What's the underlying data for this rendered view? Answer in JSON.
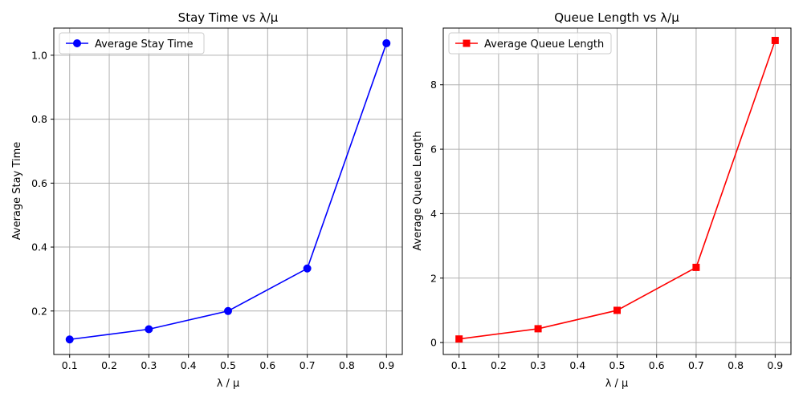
{
  "chart_data": [
    {
      "type": "line",
      "title": "Stay Time vs λ/μ",
      "xlabel": "λ / μ",
      "ylabel": "Average Stay Time",
      "x": [
        0.1,
        0.3,
        0.5,
        0.7,
        0.9
      ],
      "xlim": [
        0.06,
        0.94
      ],
      "ylim": [
        0.064,
        1.085
      ],
      "xticks": [
        0.1,
        0.2,
        0.3,
        0.4,
        0.5,
        0.6,
        0.7,
        0.8,
        0.9
      ],
      "xtick_labels": [
        "0.1",
        "0.2",
        "0.3",
        "0.4",
        "0.5",
        "0.6",
        "0.7",
        "0.8",
        "0.9"
      ],
      "yticks": [
        0.2,
        0.4,
        0.6,
        0.8,
        1.0
      ],
      "ytick_labels": [
        "0.2",
        "0.4",
        "0.6",
        "0.8",
        "1.0"
      ],
      "grid": true,
      "legend": "top-left",
      "series": [
        {
          "name": "Average Stay Time",
          "values": [
            0.111,
            0.143,
            0.2,
            0.333,
            1.0375
          ],
          "color": "#0000ff",
          "marker": "circle"
        }
      ]
    },
    {
      "type": "line",
      "title": "Queue Length vs λ/μ",
      "xlabel": "λ / μ",
      "ylabel": "Average Queue Length",
      "x": [
        0.1,
        0.3,
        0.5,
        0.7,
        0.9
      ],
      "xlim": [
        0.06,
        0.94
      ],
      "ylim": [
        -0.37,
        9.76
      ],
      "xticks": [
        0.1,
        0.2,
        0.3,
        0.4,
        0.5,
        0.6,
        0.7,
        0.8,
        0.9
      ],
      "xtick_labels": [
        "0.1",
        "0.2",
        "0.3",
        "0.4",
        "0.5",
        "0.6",
        "0.7",
        "0.8",
        "0.9"
      ],
      "yticks": [
        0,
        2,
        4,
        6,
        8
      ],
      "ytick_labels": [
        "0",
        "2",
        "4",
        "6",
        "8"
      ],
      "grid": true,
      "legend": "top-left",
      "series": [
        {
          "name": "Average Queue Length",
          "values": [
            0.111,
            0.429,
            1.0,
            2.333,
            9.375
          ],
          "color": "#ff0000",
          "marker": "square"
        }
      ]
    }
  ]
}
